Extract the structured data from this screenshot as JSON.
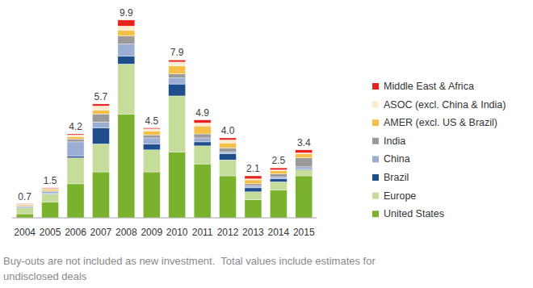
{
  "chart_data": {
    "type": "bar",
    "stacked": true,
    "tick_labels": "x",
    "legend": "right",
    "categories": [
      "2004",
      "2005",
      "2006",
      "2007",
      "2008",
      "2009",
      "2010",
      "2011",
      "2012",
      "2013",
      "2014",
      "2015"
    ],
    "ylim": [
      0,
      10.5
    ],
    "series": [
      {
        "name": "United States",
        "color": "#7ab22e",
        "values": [
          0.2,
          0.8,
          1.7,
          2.3,
          5.2,
          2.3,
          3.3,
          2.7,
          2.1,
          0.9,
          1.4,
          2.1
        ]
      },
      {
        "name": "Europe",
        "color": "#c5dc9a",
        "values": [
          0.3,
          0.4,
          1.3,
          1.4,
          2.5,
          1.1,
          2.8,
          0.9,
          0.8,
          0.4,
          0.4,
          0.3
        ]
      },
      {
        "name": "Brazil",
        "color": "#1f4e8c",
        "values": [
          0.02,
          0.03,
          0.1,
          0.8,
          0.4,
          0.3,
          0.6,
          0.2,
          0.3,
          0.2,
          0.15,
          0.05
        ]
      },
      {
        "name": "China",
        "color": "#9badd3",
        "values": [
          0.05,
          0.07,
          0.7,
          0.3,
          0.6,
          0.3,
          0.3,
          0.2,
          0.1,
          0.1,
          0.1,
          0.1
        ]
      },
      {
        "name": "India",
        "color": "#9a9a9a",
        "values": [
          0.03,
          0.05,
          0.15,
          0.4,
          0.4,
          0.15,
          0.2,
          0.2,
          0.2,
          0.1,
          0.15,
          0.45
        ]
      },
      {
        "name": "AMER (excl. US & Brazil)",
        "color": "#f5c04a",
        "values": [
          0.05,
          0.07,
          0.1,
          0.2,
          0.3,
          0.2,
          0.4,
          0.4,
          0.25,
          0.2,
          0.15,
          0.2
        ]
      },
      {
        "name": "ASOC (excl. China & India)",
        "color": "#fbeccf",
        "values": [
          0.03,
          0.05,
          0.1,
          0.2,
          0.2,
          0.1,
          0.2,
          0.15,
          0.15,
          0.05,
          0.05,
          0.05
        ]
      },
      {
        "name": "Middle East & Africa",
        "color": "#e8221c",
        "values": [
          0.02,
          0.03,
          0.05,
          0.1,
          0.3,
          0.05,
          0.1,
          0.15,
          0.1,
          0.15,
          0.1,
          0.15
        ]
      }
    ],
    "totals": [
      0.7,
      1.5,
      4.2,
      5.7,
      9.9,
      4.5,
      7.9,
      4.9,
      4.0,
      2.1,
      2.5,
      3.4
    ],
    "total_labels": [
      "0.7",
      "1.5",
      "4.2",
      "5.7",
      "9.9",
      "4.5",
      "7.9",
      "4.9",
      "4.0",
      "2.1",
      "2.5",
      "3.4"
    ],
    "caption": [
      "Buy-outs are not included as new investment.  Total values include estimates for",
      "undisclosed deals"
    ]
  }
}
